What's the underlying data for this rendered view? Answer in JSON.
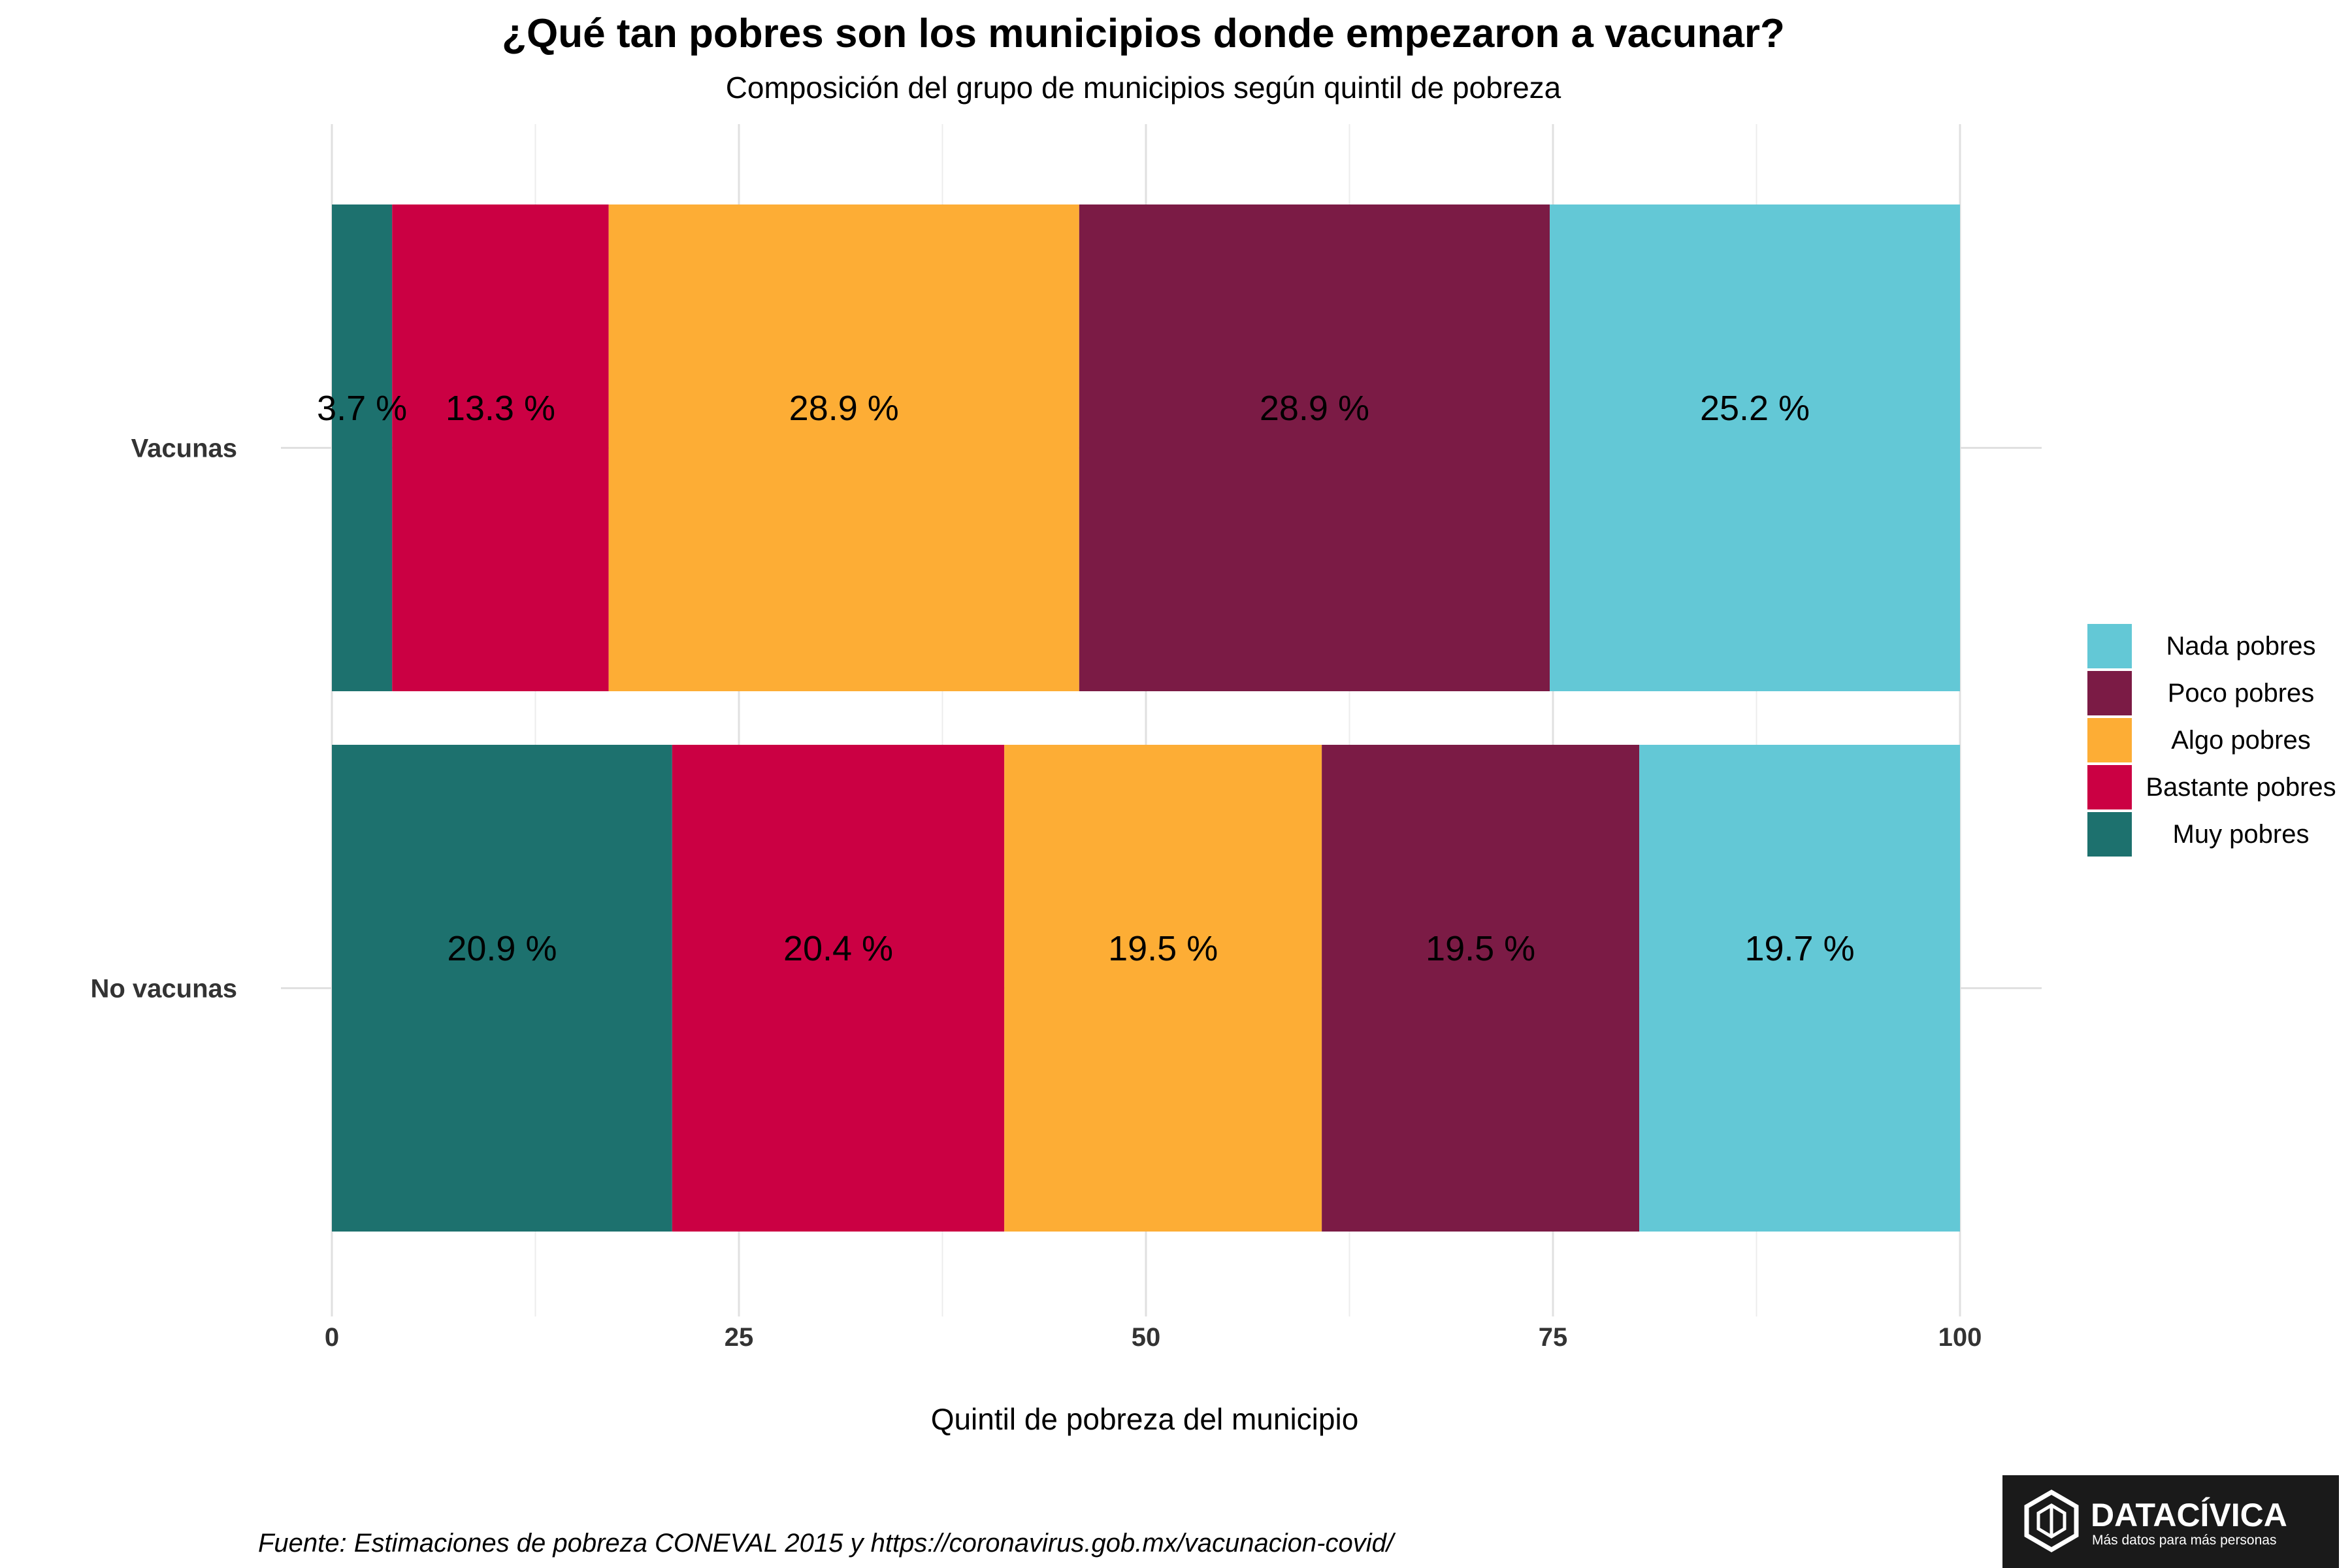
{
  "chart_data": {
    "type": "bar",
    "orientation": "horizontal",
    "stacked": true,
    "title": "¿Qué tan pobres son los municipios donde empezaron a vacunar?",
    "subtitle": "Composición del grupo de municipios según quintil de pobreza",
    "xlabel": "Quintil de pobreza del municipio",
    "ylabel": "",
    "xlim": [
      0,
      100
    ],
    "xticks": [
      "0",
      "25",
      "50",
      "75",
      "100"
    ],
    "grid": true,
    "legend_position": "right",
    "categories": [
      "Vacunas",
      "No vacunas"
    ],
    "series": [
      {
        "name": "Muy pobres",
        "color": "#1d716e",
        "values": [
          3.7,
          20.9
        ],
        "labels": [
          "3.7 %",
          "20.9 %"
        ]
      },
      {
        "name": "Bastante pobres",
        "color": "#cb0043",
        "values": [
          13.3,
          20.4
        ],
        "labels": [
          "13.3 %",
          "20.4 %"
        ]
      },
      {
        "name": "Algo pobres",
        "color": "#fdad35",
        "values": [
          28.9,
          19.5
        ],
        "labels": [
          "28.9 %",
          "19.5 %"
        ]
      },
      {
        "name": "Poco pobres",
        "color": "#7b1b45",
        "values": [
          28.9,
          19.5
        ],
        "labels": [
          "28.9 %",
          "19.5 %"
        ]
      },
      {
        "name": "Nada pobres",
        "color": "#63c8d6",
        "values": [
          25.2,
          19.7
        ],
        "labels": [
          "25.2 %",
          "19.7 %"
        ]
      }
    ],
    "legend_order": [
      "Nada pobres",
      "Poco pobres",
      "Algo pobres",
      "Bastante pobres",
      "Muy pobres"
    ]
  },
  "source": "Fuente: Estimaciones de pobreza CONEVAL 2015 y https://coronavirus.gob.mx/vacunacion-covid/",
  "logo": {
    "name": "DATACÍVICA",
    "tagline": "Más datos para más personas"
  }
}
